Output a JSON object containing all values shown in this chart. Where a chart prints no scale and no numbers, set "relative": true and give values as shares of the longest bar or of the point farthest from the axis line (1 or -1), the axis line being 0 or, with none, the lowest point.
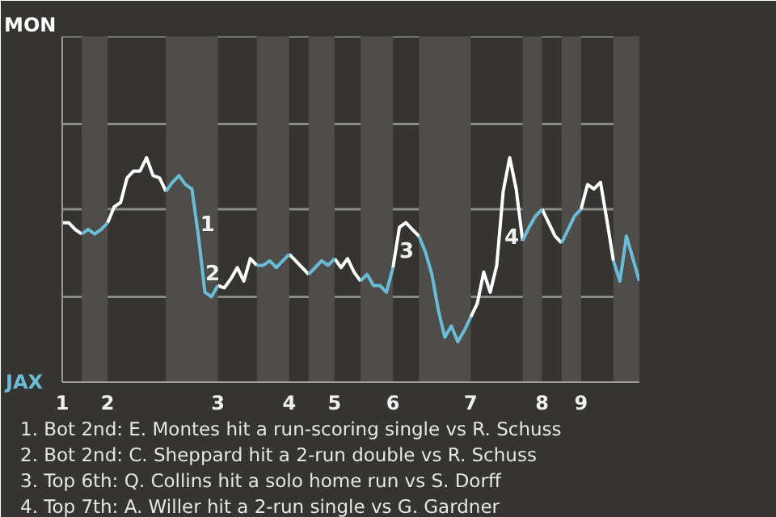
{
  "chart_data": {
    "type": "line",
    "relative": true,
    "categories": [
      "1",
      null,
      null,
      null,
      null,
      null,
      null,
      "2",
      null,
      null,
      null,
      null,
      null,
      null,
      null,
      null,
      null,
      null,
      null,
      null,
      null,
      null,
      null,
      null,
      "3",
      null,
      null,
      null,
      null,
      null,
      null,
      null,
      null,
      null,
      null,
      "4",
      null,
      null,
      null,
      null,
      null,
      null,
      "5",
      null,
      null,
      null,
      null,
      null,
      null,
      null,
      null,
      "6",
      null,
      null,
      null,
      null,
      null,
      null,
      null,
      null,
      null,
      null,
      null,
      "7",
      null,
      null,
      null,
      null,
      null,
      null,
      null,
      null,
      null,
      null,
      "8",
      null,
      null,
      null,
      null,
      null,
      "9",
      null,
      null,
      null,
      null,
      null,
      null,
      null,
      null,
      null
    ],
    "series": [
      {
        "name": "MON",
        "color": "#ffffff",
        "values": [
          0.71,
          0.71,
          0.68,
          0.66,
          null,
          null,
          null,
          0.71,
          0.78,
          0.8,
          0.91,
          0.94,
          0.94,
          1,
          0.92,
          0.91,
          0.85,
          null,
          null,
          null,
          null,
          null,
          null,
          null,
          0.43,
          0.42,
          0.46,
          0.51,
          0.45,
          0.55,
          0.52,
          null,
          null,
          null,
          null,
          0.57,
          0.54,
          0.51,
          0.48,
          null,
          null,
          null,
          0.55,
          0.51,
          0.55,
          0.49,
          0.45,
          null,
          null,
          null,
          null,
          0.51,
          0.69,
          0.71,
          0.68,
          0.65,
          null,
          null,
          null,
          null,
          null,
          null,
          null,
          0.29,
          0.35,
          0.49,
          0.4,
          0.52,
          0.85,
          1,
          0.86,
          0.63,
          null,
          null,
          0.77,
          0.71,
          0.65,
          0.62,
          null,
          null,
          0.77,
          0.88,
          0.86,
          0.89,
          0.72,
          0.54,
          null,
          null,
          null,
          null
        ]
      },
      {
        "name": "JAX",
        "color": "#6bbcd6",
        "values": [
          null,
          null,
          null,
          0.66,
          0.68,
          0.66,
          0.68,
          0.71,
          null,
          null,
          null,
          null,
          null,
          null,
          null,
          null,
          0.85,
          0.89,
          0.92,
          0.88,
          0.86,
          0.65,
          0.4,
          0.38,
          0.43,
          null,
          null,
          null,
          null,
          null,
          0.52,
          0.52,
          0.54,
          0.51,
          0.54,
          0.57,
          null,
          null,
          0.48,
          0.51,
          0.54,
          0.52,
          0.55,
          null,
          null,
          null,
          0.45,
          0.48,
          0.43,
          0.43,
          0.4,
          0.51,
          null,
          null,
          null,
          0.65,
          0.58,
          0.48,
          0.32,
          0.2,
          0.25,
          0.18,
          0.23,
          0.29,
          null,
          null,
          null,
          null,
          null,
          null,
          null,
          0.63,
          0.69,
          0.74,
          0.77,
          null,
          null,
          0.62,
          0.68,
          0.74,
          0.77,
          null,
          null,
          null,
          null,
          0.54,
          0.45,
          0.65,
          0.55,
          0.45
        ]
      }
    ],
    "ref_lines": [
      {
        "axis": "y",
        "value": 0.38,
        "color": "#8a8a8a"
      },
      {
        "axis": "y",
        "value": 0.77,
        "color": "#8a8a8a"
      },
      {
        "axis": "y",
        "value": 1.15,
        "color": "#8a8a8a"
      },
      {
        "axis": "y",
        "value": 1.54,
        "color": "#8a8a8a"
      }
    ],
    "annotations": [
      "1",
      "2",
      "3",
      "4",
      "1. Bot 2nd: E. Montes hit a run-scoring single vs R. Schuss",
      "2. Bot 2nd: C. Sheppard hit a 2-run double vs R. Schuss",
      "3. Top 6th: Q. Collins hit a solo home run vs S. Dorff",
      "4. Top 7th: A. Willer hit a 2-run single vs G. Gardner"
    ]
  }
}
